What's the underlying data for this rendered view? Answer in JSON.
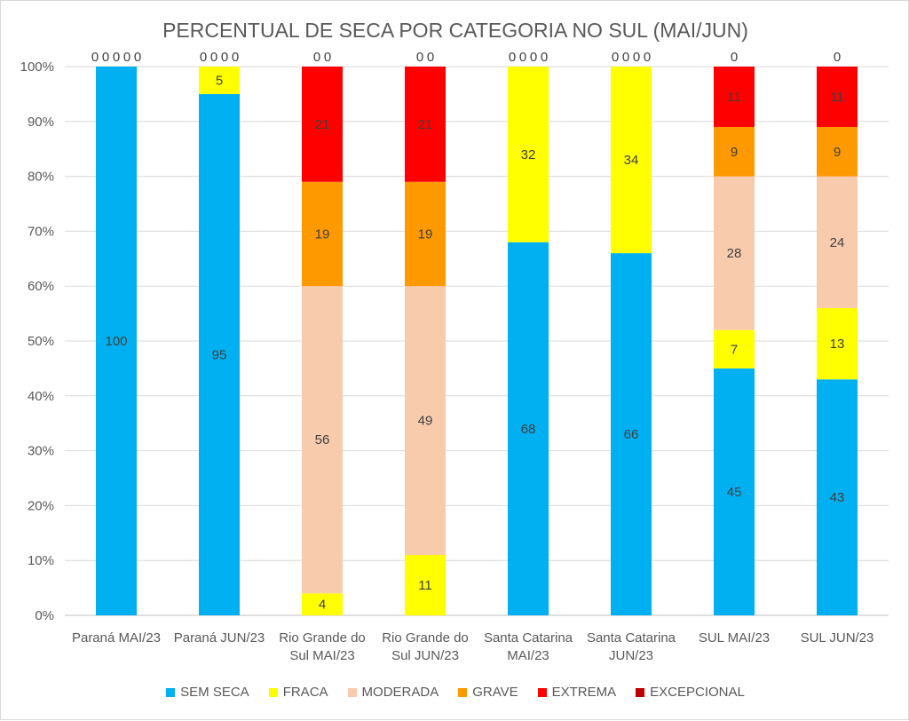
{
  "chart_data": {
    "type": "bar",
    "stacked": "percent",
    "title": "PERCENTUAL DE SECA POR CATEGORIA NO SUL (MAI/JUN)",
    "categories": [
      [
        "Paraná MAI/23"
      ],
      [
        "Paraná JUN/23"
      ],
      [
        "Rio Grande do",
        "Sul MAI/23"
      ],
      [
        "Rio Grande do",
        "Sul JUN/23"
      ],
      [
        "Santa Catarina",
        "MAI/23"
      ],
      [
        "Santa Catarina",
        "JUN/23"
      ],
      [
        "SUL MAI/23"
      ],
      [
        "SUL JUN/23"
      ]
    ],
    "yticks": [
      "0%",
      "10%",
      "20%",
      "30%",
      "40%",
      "50%",
      "60%",
      "70%",
      "80%",
      "90%",
      "100%"
    ],
    "ylim": [
      0,
      100
    ],
    "grid": true,
    "legend": "bottom",
    "series": [
      {
        "name": "SEM SECA",
        "color": "#00b0f0",
        "values": [
          100,
          95,
          0,
          0,
          68,
          66,
          45,
          43
        ]
      },
      {
        "name": "FRACA",
        "color": "#ffff00",
        "values": [
          0,
          5,
          4,
          11,
          32,
          34,
          7,
          13
        ]
      },
      {
        "name": "MODERADA",
        "color": "#f8cbad",
        "values": [
          0,
          0,
          56,
          49,
          0,
          0,
          28,
          24
        ]
      },
      {
        "name": "GRAVE",
        "color": "#ff9900",
        "values": [
          0,
          0,
          19,
          19,
          0,
          0,
          9,
          9
        ]
      },
      {
        "name": "EXTREMA",
        "color": "#ff0000",
        "values": [
          0,
          0,
          21,
          21,
          0,
          0,
          11,
          11
        ]
      },
      {
        "name": "EXCEPCIONAL",
        "color": "#c00000",
        "values": [
          0,
          0,
          0,
          0,
          0,
          0,
          0,
          0
        ]
      }
    ]
  }
}
